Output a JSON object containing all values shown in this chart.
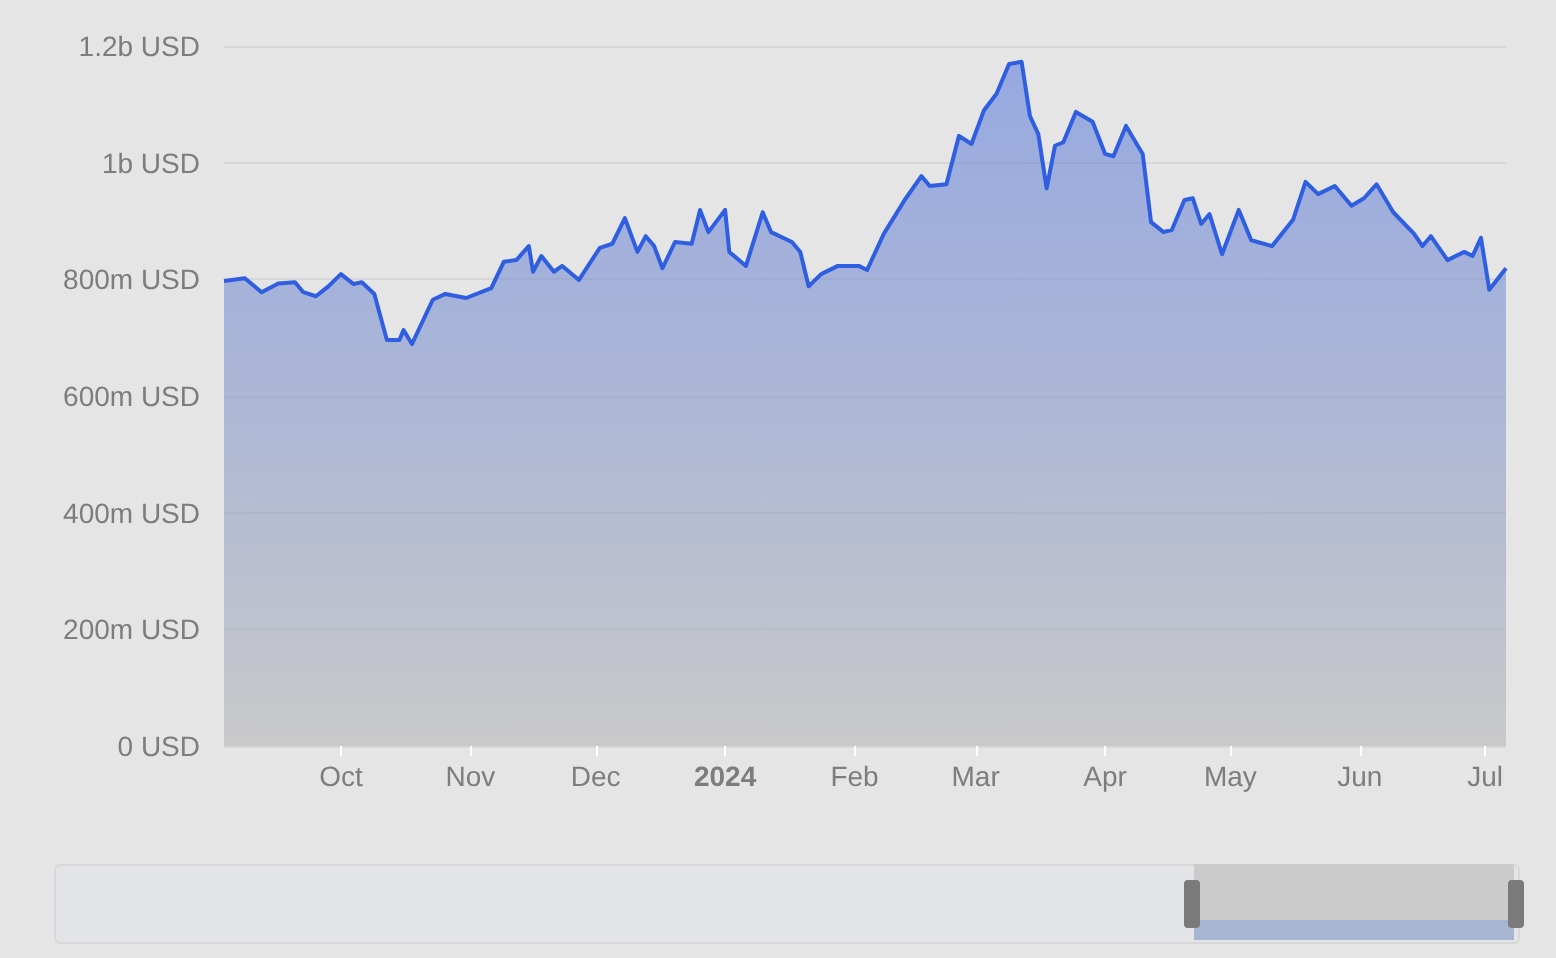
{
  "chart_data": {
    "type": "area",
    "x": [
      "2023-09-03",
      "2023-09-08",
      "2023-09-12",
      "2023-09-16",
      "2023-09-20",
      "2023-09-22",
      "2023-09-25",
      "2023-09-28",
      "2023-10-01",
      "2023-10-04",
      "2023-10-06",
      "2023-10-09",
      "2023-10-12",
      "2023-10-15",
      "2023-10-16",
      "2023-10-18",
      "2023-10-23",
      "2023-10-26",
      "2023-10-31",
      "2023-11-06",
      "2023-11-09",
      "2023-11-12",
      "2023-11-15",
      "2023-11-16",
      "2023-11-18",
      "2023-11-21",
      "2023-11-23",
      "2023-11-27",
      "2023-12-02",
      "2023-12-05",
      "2023-12-08",
      "2023-12-11",
      "2023-12-13",
      "2023-12-15",
      "2023-12-17",
      "2023-12-20",
      "2023-12-24",
      "2023-12-26",
      "2023-12-28",
      "2024-01-01",
      "2024-01-02",
      "2024-01-06",
      "2024-01-10",
      "2024-01-12",
      "2024-01-17",
      "2024-01-19",
      "2024-01-21",
      "2024-01-24",
      "2024-01-28",
      "2024-02-02",
      "2024-02-04",
      "2024-02-08",
      "2024-02-13",
      "2024-02-17",
      "2024-02-19",
      "2024-02-23",
      "2024-02-26",
      "2024-02-29",
      "2024-03-03",
      "2024-03-06",
      "2024-03-09",
      "2024-03-12",
      "2024-03-14",
      "2024-03-16",
      "2024-03-18",
      "2024-03-20",
      "2024-03-22",
      "2024-03-25",
      "2024-03-29",
      "2024-04-01",
      "2024-04-03",
      "2024-04-06",
      "2024-04-10",
      "2024-04-12",
      "2024-04-15",
      "2024-04-17",
      "2024-04-20",
      "2024-04-22",
      "2024-04-24",
      "2024-04-26",
      "2024-04-29",
      "2024-05-03",
      "2024-05-06",
      "2024-05-11",
      "2024-05-16",
      "2024-05-19",
      "2024-05-22",
      "2024-05-26",
      "2024-05-30",
      "2024-06-02",
      "2024-06-05",
      "2024-06-09",
      "2024-06-14",
      "2024-06-16",
      "2024-06-18",
      "2024-06-22",
      "2024-06-26",
      "2024-06-28",
      "2024-06-30",
      "2024-07-02",
      "2024-07-06"
    ],
    "series": [
      {
        "color": "#2f5fe0",
        "values": [
          797000000,
          802000000,
          778000000,
          793000000,
          795000000,
          778000000,
          771000000,
          788000000,
          809000000,
          792000000,
          795000000,
          775000000,
          696000000,
          696000000,
          713000000,
          689000000,
          765000000,
          775000000,
          768000000,
          785000000,
          830000000,
          833000000,
          857000000,
          813000000,
          840000000,
          813000000,
          823000000,
          799000000,
          854000000,
          861000000,
          905000000,
          847000000,
          874000000,
          857000000,
          819000000,
          864000000,
          861000000,
          919000000,
          881000000,
          919000000,
          847000000,
          823000000,
          915000000,
          881000000,
          864000000,
          847000000,
          788000000,
          809000000,
          823000000,
          823000000,
          816000000,
          878000000,
          936000000,
          977000000,
          960000000,
          963000000,
          1046000000,
          1032000000,
          1090000000,
          1118000000,
          1169000000,
          1173000000,
          1080000000,
          1049000000,
          956000000,
          1029000000,
          1035000000,
          1087000000,
          1070000000,
          1015000000,
          1011000000,
          1063000000,
          1015000000,
          898000000,
          881000000,
          885000000,
          936000000,
          939000000,
          895000000,
          912000000,
          843000000,
          919000000,
          867000000,
          857000000,
          902000000,
          967000000,
          946000000,
          960000000,
          926000000,
          939000000,
          963000000,
          915000000,
          878000000,
          857000000,
          874000000,
          833000000,
          847000000,
          840000000,
          871000000,
          782000000,
          819000000
        ]
      }
    ],
    "xlim": [
      "2023-09-03",
      "2024-07-06"
    ],
    "xticks": [
      {
        "value": "2023-10-01",
        "label": "Oct"
      },
      {
        "value": "2023-11-01",
        "label": "Nov"
      },
      {
        "value": "2023-12-01",
        "label": "Dec"
      },
      {
        "value": "2024-01-01",
        "label": "2024"
      },
      {
        "value": "2024-02-01",
        "label": "Feb"
      },
      {
        "value": "2024-03-01",
        "label": "Mar"
      },
      {
        "value": "2024-04-01",
        "label": "Apr"
      },
      {
        "value": "2024-05-01",
        "label": "May"
      },
      {
        "value": "2024-06-01",
        "label": "Jun"
      },
      {
        "value": "2024-07-01",
        "label": "Jul"
      }
    ],
    "ylim": [
      0,
      1200000000
    ],
    "yticks": [
      {
        "value": 0,
        "label": "0 USD"
      },
      {
        "value": 200000000,
        "label": "200m USD"
      },
      {
        "value": 400000000,
        "label": "400m USD"
      },
      {
        "value": 600000000,
        "label": "600m USD"
      },
      {
        "value": 800000000,
        "label": "800m USD"
      },
      {
        "value": 1000000000,
        "label": "1b USD"
      },
      {
        "value": 1200000000,
        "label": "1.2b USD"
      }
    ],
    "grid": "y",
    "marker": "none",
    "line_style": "solid"
  }
}
